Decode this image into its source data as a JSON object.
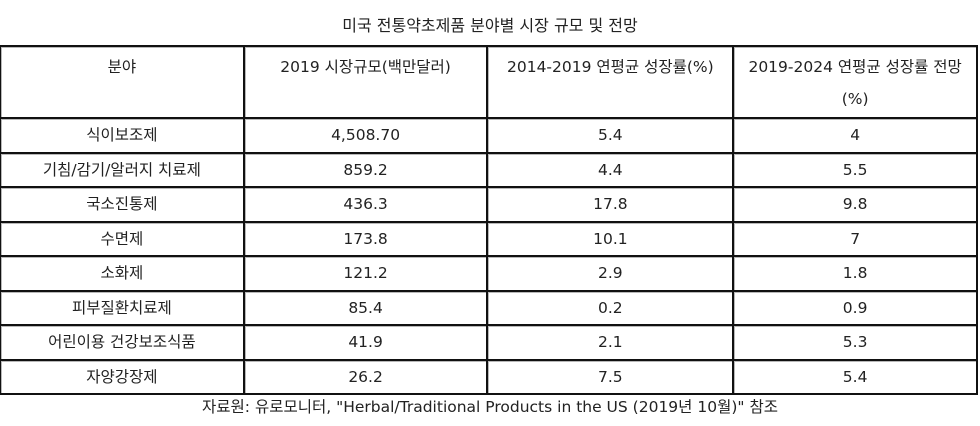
{
  "caption": "미국 전통약초제품 분야별 시장 규모 및 전망",
  "table": {
    "headers": [
      "분야",
      "2019 시장규모(백만달러)",
      "2014-2019 연평균 성장률(%)",
      "2019-2024 연평균 성장률 전망(%)"
    ],
    "rows": [
      [
        "식이보조제",
        "4,508.70",
        "5.4",
        "4"
      ],
      [
        "기침/감기/알러지 치료제",
        "859.2",
        "4.4",
        "5.5"
      ],
      [
        "국소진통제",
        "436.3",
        "17.8",
        "9.8"
      ],
      [
        "수면제",
        "173.8",
        "10.1",
        "7"
      ],
      [
        "소화제",
        "121.2",
        "2.9",
        "1.8"
      ],
      [
        "피부질환치료제",
        "85.4",
        "0.2",
        "0.9"
      ],
      [
        "어린이용 건강보조식품",
        "41.9",
        "2.1",
        "5.3"
      ],
      [
        "자양강장제",
        "26.2",
        "7.5",
        "5.4"
      ]
    ]
  },
  "source": "자료원: 유로모니터, \"Herbal/Traditional Products in the US (2019년 10월)\" 참조"
}
